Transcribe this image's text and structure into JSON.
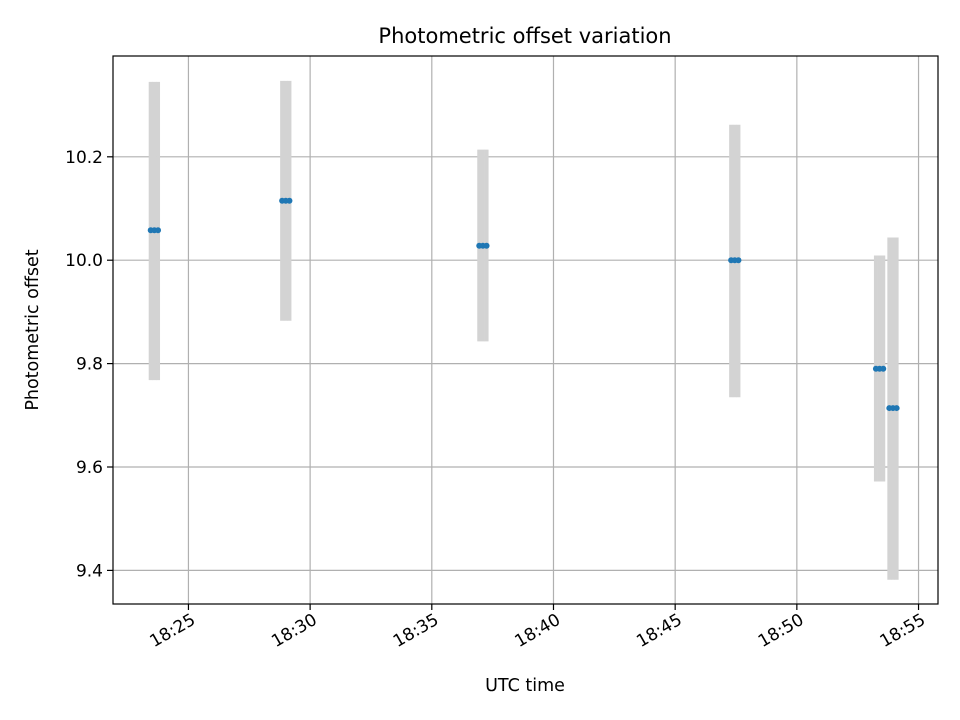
{
  "chart_data": {
    "type": "scatter",
    "title": "Photometric offset variation",
    "xlabel": "UTC time",
    "ylabel": "Photometric offset",
    "x_axis": "time",
    "xlim": [
      "18:21:54",
      "18:55:48"
    ],
    "ylim": [
      9.335,
      10.395
    ],
    "xticks": [
      "18:25",
      "18:30",
      "18:35",
      "18:40",
      "18:45",
      "18:50",
      "18:55"
    ],
    "yticks": [
      "9.4",
      "9.6",
      "9.8",
      "10.0",
      "10.2"
    ],
    "grid": true,
    "series": [
      {
        "marker_color": "#1f77b4",
        "errorbar_color": "#d3d3d3",
        "points": [
          {
            "x": "18:23:27",
            "y": 10.058,
            "ylow": 9.768,
            "yhigh": 10.345
          },
          {
            "x": "18:23:36",
            "y": 10.058,
            "ylow": 9.768,
            "yhigh": 10.345
          },
          {
            "x": "18:23:45",
            "y": 10.058,
            "ylow": 9.768,
            "yhigh": 10.345
          },
          {
            "x": "18:28:51",
            "y": 10.115,
            "ylow": 9.883,
            "yhigh": 10.347
          },
          {
            "x": "18:29:00",
            "y": 10.115,
            "ylow": 9.883,
            "yhigh": 10.347
          },
          {
            "x": "18:29:09",
            "y": 10.115,
            "ylow": 9.883,
            "yhigh": 10.347
          },
          {
            "x": "18:36:57",
            "y": 10.028,
            "ylow": 9.843,
            "yhigh": 10.214
          },
          {
            "x": "18:37:06",
            "y": 10.028,
            "ylow": 9.843,
            "yhigh": 10.214
          },
          {
            "x": "18:37:15",
            "y": 10.028,
            "ylow": 9.843,
            "yhigh": 10.214
          },
          {
            "x": "18:47:18",
            "y": 10.0,
            "ylow": 9.735,
            "yhigh": 10.262
          },
          {
            "x": "18:47:27",
            "y": 10.0,
            "ylow": 9.735,
            "yhigh": 10.262
          },
          {
            "x": "18:47:36",
            "y": 10.0,
            "ylow": 9.735,
            "yhigh": 10.262
          },
          {
            "x": "18:53:15",
            "y": 9.79,
            "ylow": 9.572,
            "yhigh": 10.009
          },
          {
            "x": "18:53:24",
            "y": 9.79,
            "ylow": 9.572,
            "yhigh": 10.009
          },
          {
            "x": "18:53:33",
            "y": 9.79,
            "ylow": 9.572,
            "yhigh": 10.009
          },
          {
            "x": "18:53:48",
            "y": 9.714,
            "ylow": 9.382,
            "yhigh": 10.044
          },
          {
            "x": "18:53:57",
            "y": 9.714,
            "ylow": 9.382,
            "yhigh": 10.044
          },
          {
            "x": "18:54:06",
            "y": 9.714,
            "ylow": 9.382,
            "yhigh": 10.044
          }
        ]
      }
    ]
  }
}
